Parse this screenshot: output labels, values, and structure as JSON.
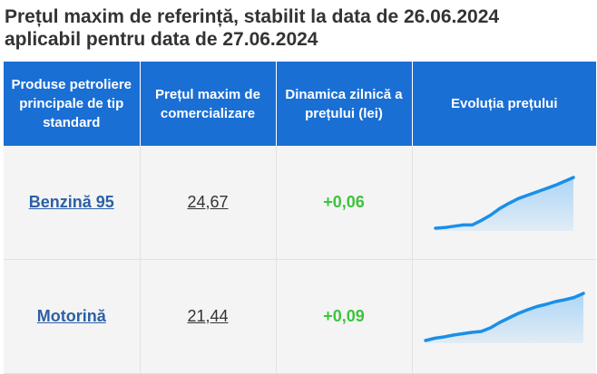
{
  "title": {
    "line1": "Prețul maxim de referință, stabilit la data de 26.06.2024",
    "line2": "aplicabil pentru data de 27.06.2024"
  },
  "table": {
    "headers": [
      "Produse petroliere principale de tip standard",
      "Prețul maxim de comercializare",
      "Dinamica zilnică a prețului (lei)",
      "Evoluția prețului"
    ],
    "rows": [
      {
        "product": "Benzină 95",
        "price": "24,67",
        "change": "+0,06"
      },
      {
        "product": "Motorină",
        "price": "21,44",
        "change": "+0,09"
      }
    ]
  },
  "colors": {
    "header_bg": "#1a6fd4",
    "link": "#2d5fa6",
    "positive_change": "#3cc43c",
    "sparkline_line": "#1a8fe8",
    "sparkline_fill": "#a9d4f7"
  },
  "chart_data": [
    {
      "type": "area",
      "series": [
        {
          "values": [
            23.9,
            23.91,
            23.93,
            23.95,
            23.95,
            24.02,
            24.1,
            24.2,
            24.28,
            24.35,
            24.4,
            24.45,
            24.5,
            24.55,
            24.61,
            24.67
          ]
        }
      ]
    },
    {
      "type": "area",
      "series": [
        {
          "values": [
            20.4,
            20.45,
            20.48,
            20.52,
            20.55,
            20.58,
            20.6,
            20.68,
            20.8,
            20.9,
            21.0,
            21.08,
            21.15,
            21.2,
            21.26,
            21.3,
            21.35,
            21.44
          ]
        }
      ]
    }
  ]
}
